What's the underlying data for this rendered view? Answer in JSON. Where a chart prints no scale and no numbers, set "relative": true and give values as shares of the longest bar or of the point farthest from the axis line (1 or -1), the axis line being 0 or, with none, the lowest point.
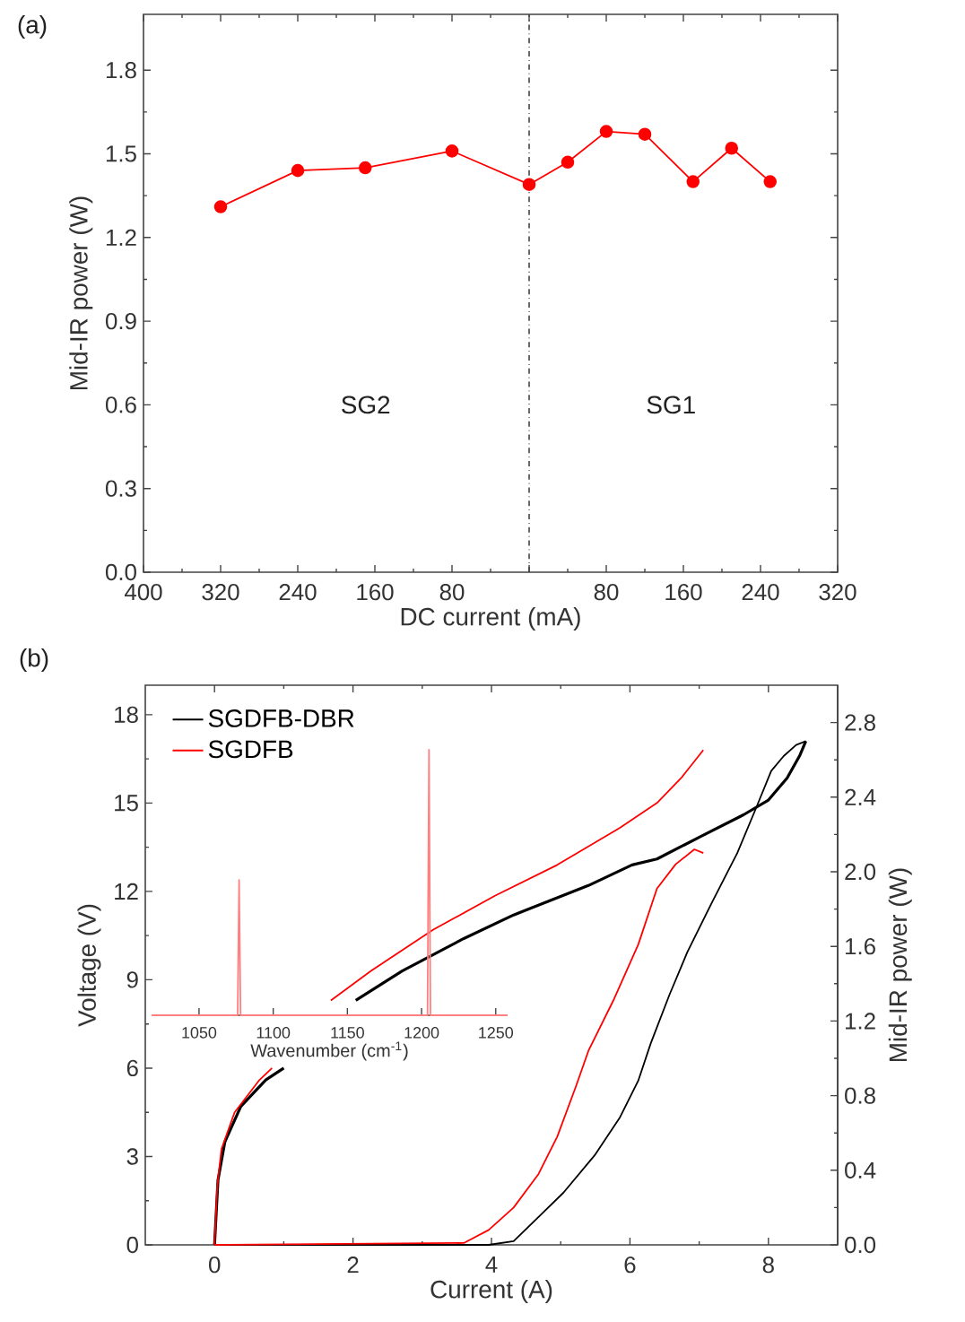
{
  "chart_data": [
    {
      "type": "line",
      "xlabel": "DC current (mA)",
      "ylabel": "Mid-IR power (W)",
      "color": "#ff0000",
      "marker": "circle",
      "x": [
        -320,
        -240,
        -170,
        -80,
        0,
        40,
        80,
        120,
        170,
        210,
        250
      ],
      "values": [
        1.31,
        1.44,
        1.45,
        1.51,
        1.39,
        1.47,
        1.58,
        1.57,
        1.4,
        1.52,
        1.4
      ],
      "xlim": [
        -400,
        320
      ],
      "xticks": [
        {
          "value": -400,
          "label": "400"
        },
        {
          "value": -320,
          "label": "320"
        },
        {
          "value": -240,
          "label": "240"
        },
        {
          "value": -160,
          "label": "160"
        },
        {
          "value": -80,
          "label": "80"
        },
        {
          "value": 0,
          "label": null
        },
        80,
        160,
        240,
        320
      ],
      "ylim": [
        0,
        2.0
      ],
      "yticks": [
        {
          "value": 0,
          "label": "0.0"
        },
        0.3,
        0.6,
        0.9,
        1.2,
        1.5,
        1.8
      ],
      "ref_lines": [
        {
          "axis": "x",
          "value": 0,
          "color": "#444444",
          "line_style": "dashdot"
        }
      ],
      "annotations": [
        "(a)",
        "SG2",
        "SG1"
      ]
    },
    {
      "type": "line",
      "xlabel": "Current (A)",
      "ylabel": "Voltage (V)",
      "y2label": "Mid-IR power (W)",
      "legend": "top left",
      "xlim": [
        -1,
        9
      ],
      "xticks": [
        0,
        2,
        4,
        6,
        8
      ],
      "ylim": [
        0,
        19
      ],
      "yticks": [
        0,
        3,
        6,
        9,
        12,
        15,
        18
      ],
      "y2lim": [
        0,
        3.0
      ],
      "y2ticks": [
        {
          "value": 0,
          "label": "0.0"
        },
        0.4,
        0.8,
        1.2,
        1.6,
        {
          "value": 2.0,
          "label": "2.0"
        },
        2.4,
        2.8
      ],
      "series": [
        {
          "name": "SGDFB-DBR",
          "color": "#000000",
          "x": [
            0,
            0.05,
            0.15,
            0.38,
            0.74,
            1.0,
            1.5,
            2.04,
            2.71,
            3.6,
            4.32,
            5.4,
            6.03,
            6.39,
            7.01,
            7.64,
            8.0,
            8.27,
            8.45,
            8.54
          ],
          "values": [
            0,
            2.2,
            3.5,
            4.7,
            5.6,
            6.0,
            null,
            8.3,
            9.3,
            10.4,
            11.2,
            12.2,
            12.9,
            13.1,
            13.85,
            14.6,
            15.1,
            15.85,
            16.6,
            17.1
          ]
        },
        {
          "name": "SGDFB",
          "color": "#ff0000",
          "x": [
            0,
            0.04,
            0.1,
            0.29,
            0.65,
            0.83,
            1.2,
            1.68,
            2.26,
            3.16,
            4.05,
            4.95,
            5.85,
            6.39,
            6.74,
            7.06
          ],
          "values": [
            0,
            2.0,
            3.25,
            4.5,
            5.6,
            6.0,
            null,
            8.3,
            9.3,
            10.7,
            11.85,
            12.9,
            14.15,
            15.0,
            15.85,
            16.8
          ]
        },
        {
          "color": "#000000",
          "axis": "y2",
          "x": [
            0,
            3.96,
            4.32,
            4.68,
            5.04,
            5.49,
            5.85,
            6.12,
            6.3,
            6.57,
            6.83,
            7.19,
            7.55,
            7.82,
            8.04,
            8.22,
            8.4,
            8.54
          ],
          "values": [
            0,
            0,
            0.02,
            0.15,
            0.28,
            0.48,
            0.68,
            0.88,
            1.08,
            1.34,
            1.57,
            1.84,
            2.1,
            2.34,
            2.54,
            2.62,
            2.68,
            2.7
          ]
        },
        {
          "color": "#ff0000",
          "axis": "y2",
          "x": [
            0,
            3.6,
            3.96,
            4.32,
            4.68,
            4.95,
            5.22,
            5.4,
            5.76,
            6.12,
            6.39,
            6.66,
            6.93,
            7.06
          ],
          "values": [
            0,
            0.01,
            0.08,
            0.2,
            0.38,
            0.58,
            0.85,
            1.04,
            1.31,
            1.61,
            1.91,
            2.04,
            2.12,
            2.1
          ]
        }
      ],
      "annotations": [
        "(b)"
      ]
    },
    {
      "type": "line",
      "relative": true,
      "xlabel": "Wavenumber (cm$^{-1}$)",
      "xlim": [
        1018,
        1258
      ],
      "xticks": [
        1050,
        1100,
        1150,
        1200,
        1250
      ],
      "series": [
        {
          "color": "#ff8080",
          "x": [
            1018,
            1076,
            1077,
            1078,
            1204,
            1205,
            1206,
            1258
          ],
          "values": [
            0,
            0,
            0.51,
            0,
            0,
            1,
            0,
            0
          ]
        }
      ]
    }
  ]
}
